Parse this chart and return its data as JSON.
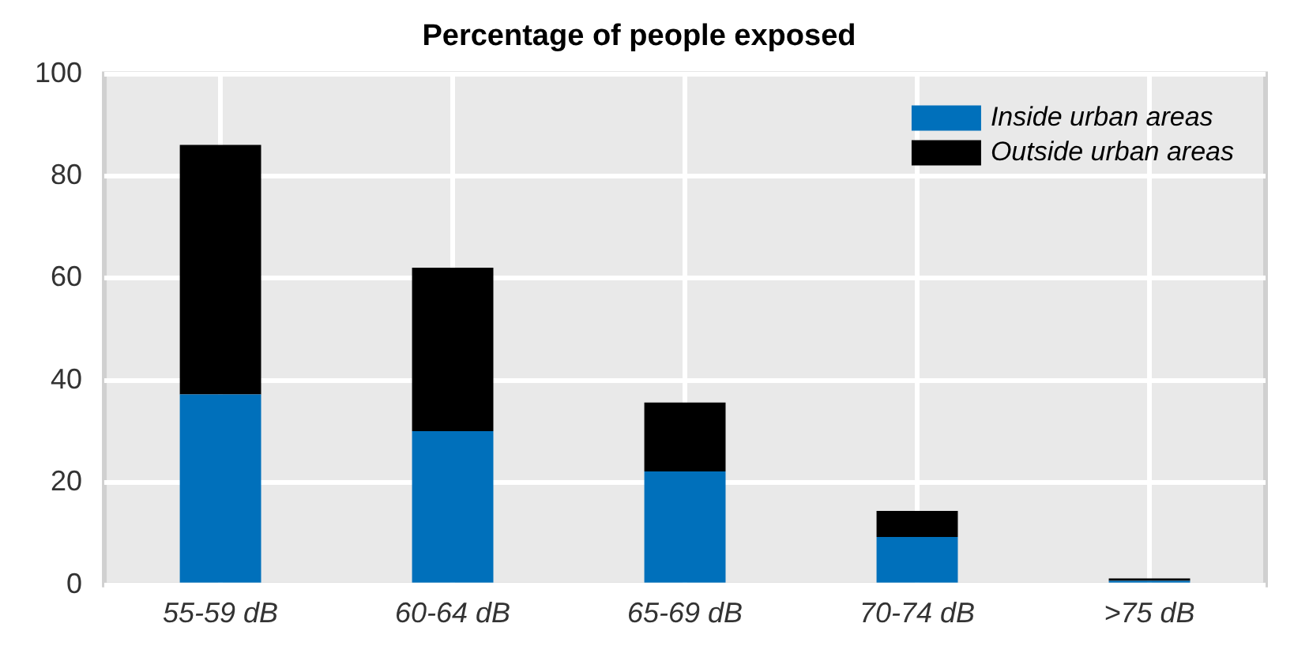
{
  "chart_data": {
    "type": "bar",
    "title": "Percentage of people exposed",
    "categories": [
      "55-59 dB",
      "60-64 dB",
      "65-69 dB",
      "70-74 dB",
      ">75 dB"
    ],
    "stacked": true,
    "series": [
      {
        "name": "Inside urban areas",
        "color": "#0070bb",
        "values": [
          37.3,
          30.1,
          22.2,
          9.4,
          0.8
        ]
      },
      {
        "name": "Outside urban areas",
        "color": "#000000",
        "values": [
          48.8,
          32.0,
          13.5,
          5.1,
          0.5
        ]
      }
    ],
    "ylim": [
      0,
      100
    ],
    "yticks": [
      0,
      20,
      40,
      60,
      80,
      100
    ],
    "grid": true,
    "legend": "top right"
  }
}
